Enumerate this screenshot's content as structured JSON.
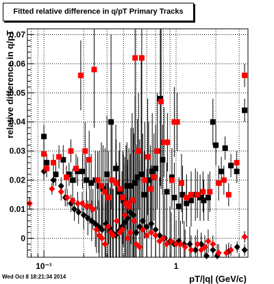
{
  "title": "Fitted relative difference in q/pT  Primary Tracks",
  "footer": "Wed Oct  8 18:21:34 2014",
  "colors": {
    "frame": "#000000",
    "grid": "#000000",
    "series_black": "#000000",
    "series_red": "#ff0000"
  },
  "chart_data": {
    "type": "scatter",
    "xlabel": "pT/|q| (GeV/c)",
    "ylabel": "relative difference in q/pT",
    "x_scale": "log",
    "xlim": [
      0.075,
      3.5
    ],
    "ylim": [
      -0.0065,
      0.072
    ],
    "grid": true,
    "x_ticks": [
      {
        "value": 0.1,
        "label": "10⁻¹"
      },
      {
        "value": 1,
        "label": "1"
      }
    ],
    "y_ticks": [
      {
        "value": 0,
        "label": "0"
      },
      {
        "value": 0.01,
        "label": "0.01"
      },
      {
        "value": 0.02,
        "label": "0.02"
      },
      {
        "value": 0.03,
        "label": "0.03"
      },
      {
        "value": 0.04,
        "label": "0.04"
      },
      {
        "value": 0.05,
        "label": "0.05"
      },
      {
        "value": 0.06,
        "label": "0.06"
      },
      {
        "value": 0.07,
        "label": "0.07"
      }
    ],
    "series": [
      {
        "color": "#000000",
        "marker": "square",
        "points": [
          [
            0.1,
            0.035,
            0.004
          ],
          [
            0.105,
            0.026,
            0.003
          ],
          [
            0.123,
            0.022,
            0.004
          ],
          [
            0.14,
            0.027,
            0.005
          ],
          [
            0.155,
            0.022,
            0.004
          ],
          [
            0.165,
            0.02,
            0.004
          ],
          [
            0.18,
            0.023,
            0.005
          ],
          [
            0.196,
            0.023,
            0.006
          ],
          [
            0.21,
            0.02,
            0.008
          ],
          [
            0.228,
            0.019,
            0.01
          ],
          [
            0.245,
            0.02,
            0.01
          ],
          [
            0.262,
            0.018,
            0.012
          ],
          [
            0.28,
            0.017,
            0.015
          ],
          [
            0.3,
            0.022,
            0.02
          ],
          [
            0.322,
            0.04,
            0.03
          ],
          [
            0.35,
            0.024,
            0.015
          ],
          [
            0.37,
            0.016,
            0.014
          ],
          [
            0.4,
            0.013,
            0.016
          ],
          [
            0.425,
            0.018,
            0.015
          ],
          [
            0.455,
            0.018,
            0.02
          ],
          [
            0.49,
            0.019,
            0.03
          ],
          [
            0.51,
            0.021,
            0.02
          ],
          [
            0.545,
            0.022,
            0.04
          ],
          [
            0.575,
            0.015,
            0.015
          ],
          [
            0.62,
            0.02,
            0.02
          ],
          [
            0.66,
            0.023,
            0.02
          ],
          [
            0.7,
            0.024,
            0.015
          ],
          [
            0.76,
            0.048,
            0.03
          ],
          [
            0.79,
            0.027,
            0.012
          ],
          [
            0.85,
            0.016,
            0.01
          ],
          [
            0.93,
            0.021,
            0.01
          ],
          [
            0.97,
            0.014,
            0.012
          ],
          [
            1.05,
            0.011,
            0.01
          ],
          [
            1.12,
            0.015,
            0.01
          ],
          [
            1.2,
            0.012,
            0.008
          ],
          [
            1.3,
            0.013,
            0.009
          ],
          [
            1.4,
            0.015,
            0.009
          ],
          [
            1.52,
            0.014,
            0.008
          ],
          [
            1.62,
            0.013,
            0.007
          ],
          [
            1.75,
            0.014,
            0.008
          ],
          [
            1.9,
            0.04,
            0.008
          ],
          [
            2.0,
            0.032,
            0.007
          ],
          [
            2.2,
            0.023,
            0.005
          ],
          [
            2.35,
            0.031,
            0.004
          ],
          [
            2.6,
            0.025,
            0.004
          ],
          [
            2.88,
            0.023,
            0.004
          ],
          [
            3.3,
            0.044,
            0.004
          ]
        ]
      },
      {
        "color": "#000000",
        "marker": "diamond",
        "points": [
          [
            0.1,
            0.023,
            0.003
          ],
          [
            0.118,
            0.02,
            0.002
          ],
          [
            0.135,
            0.018,
            0.003
          ],
          [
            0.145,
            0.014,
            0.003
          ],
          [
            0.16,
            0.012,
            0.003
          ],
          [
            0.17,
            0.01,
            0.004
          ],
          [
            0.183,
            0.009,
            0.004
          ],
          [
            0.2,
            0.008,
            0.005
          ],
          [
            0.215,
            0.007,
            0.006
          ],
          [
            0.23,
            0.006,
            0.007
          ],
          [
            0.245,
            0.005,
            0.008
          ],
          [
            0.26,
            0.004,
            0.009
          ],
          [
            0.275,
            0.003,
            0.012
          ],
          [
            0.295,
            0.005,
            0.014
          ],
          [
            0.315,
            0.0035,
            0.014
          ],
          [
            0.33,
            0.002,
            0.015
          ],
          [
            0.35,
            0.001,
            0.02
          ],
          [
            0.37,
            0.0025,
            0.016
          ],
          [
            0.39,
            0.004,
            0.016
          ],
          [
            0.41,
            0.0055,
            0.02
          ],
          [
            0.43,
            0.007,
            0.02
          ],
          [
            0.45,
            0.009,
            0.02
          ],
          [
            0.475,
            0.008,
            0.03
          ],
          [
            0.5,
            0.002,
            0.03
          ],
          [
            0.53,
            0.004,
            0.03
          ],
          [
            0.56,
            0.006,
            0.03
          ],
          [
            0.6,
            0.004,
            0.02
          ],
          [
            0.65,
            0.005,
            0.02
          ],
          [
            0.7,
            0.003,
            0.02
          ],
          [
            0.75,
            0.001,
            0.02
          ],
          [
            0.82,
            0.0,
            0.015
          ],
          [
            0.9,
            -0.001,
            0.012
          ],
          [
            0.97,
            -0.002,
            0.01
          ],
          [
            1.05,
            -0.001,
            0.01
          ],
          [
            1.15,
            -0.002,
            0.008
          ],
          [
            1.27,
            -0.002,
            0.006
          ],
          [
            1.4,
            -0.004,
            0.005
          ],
          [
            1.55,
            -0.002,
            0.004
          ],
          [
            1.7,
            -0.006,
            0.004
          ],
          [
            1.9,
            -0.004,
            0.003
          ],
          [
            2.05,
            -0.006,
            0.004
          ],
          [
            2.5,
            -0.0045,
            0.003
          ],
          [
            2.9,
            -0.003,
            0.002
          ],
          [
            3.3,
            -0.004,
            0.002
          ]
        ]
      },
      {
        "color": "#ff0000",
        "marker": "square",
        "points": [
          [
            0.1,
            0.029,
            0.004
          ],
          [
            0.105,
            0.024,
            0.003
          ],
          [
            0.118,
            0.026,
            0.003
          ],
          [
            0.13,
            0.028,
            0.004
          ],
          [
            0.148,
            0.021,
            0.004
          ],
          [
            0.16,
            0.03,
            0.004
          ],
          [
            0.175,
            0.024,
            0.005
          ],
          [
            0.19,
            0.056,
            0.012
          ],
          [
            0.205,
            0.03,
            0.01
          ],
          [
            0.22,
            0.027,
            0.01
          ],
          [
            0.24,
            0.058,
            0.02
          ],
          [
            0.255,
            0.02,
            0.01
          ],
          [
            0.272,
            0.018,
            0.015
          ],
          [
            0.29,
            0.016,
            0.015
          ],
          [
            0.308,
            0.014,
            0.016
          ],
          [
            0.328,
            0.02,
            0.02
          ],
          [
            0.352,
            0.019,
            0.015
          ],
          [
            0.375,
            0.017,
            0.016
          ],
          [
            0.395,
            0.014,
            0.016
          ],
          [
            0.418,
            0.012,
            0.02
          ],
          [
            0.44,
            0.011,
            0.02
          ],
          [
            0.465,
            0.013,
            0.03
          ],
          [
            0.49,
            0.062,
            0.03
          ],
          [
            0.52,
            0.03,
            0.02
          ],
          [
            0.55,
            0.062,
            0.04
          ],
          [
            0.58,
            0.02,
            0.02
          ],
          [
            0.61,
            0.028,
            0.02
          ],
          [
            0.64,
            0.017,
            0.015
          ],
          [
            0.68,
            0.021,
            0.015
          ],
          [
            0.72,
            0.03,
            0.02
          ],
          [
            0.77,
            0.047,
            0.03
          ],
          [
            0.81,
            0.033,
            0.012
          ],
          [
            0.86,
            0.033,
            0.01
          ],
          [
            0.93,
            0.02,
            0.01
          ],
          [
            0.97,
            0.04,
            0.012
          ],
          [
            1.02,
            0.04,
            0.01
          ],
          [
            1.1,
            0.019,
            0.01
          ],
          [
            1.2,
            0.014,
            0.008
          ],
          [
            1.3,
            0.015,
            0.008
          ],
          [
            1.45,
            0.015,
            0.008
          ],
          [
            1.6,
            0.016,
            0.007
          ],
          [
            1.8,
            0.016,
            0.007
          ],
          [
            2.1,
            0.019,
            0.006
          ],
          [
            2.3,
            0.02,
            0.005
          ],
          [
            2.5,
            0.015,
            0.004
          ],
          [
            2.88,
            0.026,
            0.004
          ],
          [
            3.3,
            0.056,
            0.004
          ]
        ]
      },
      {
        "color": "#ff0000",
        "marker": "diamond",
        "points": [
          [
            0.078,
            0.012,
            0.002
          ],
          [
            0.115,
            0.017,
            0.002
          ],
          [
            0.135,
            0.016,
            0.003
          ],
          [
            0.15,
            0.014,
            0.003
          ],
          [
            0.165,
            0.013,
            0.003
          ],
          [
            0.18,
            0.012,
            0.004
          ],
          [
            0.195,
            0.012,
            0.004
          ],
          [
            0.21,
            0.011,
            0.005
          ],
          [
            0.222,
            0.011,
            0.006
          ],
          [
            0.235,
            0.01,
            0.007
          ],
          [
            0.25,
            0.003,
            0.008
          ],
          [
            0.262,
            0.001,
            0.009
          ],
          [
            0.275,
            0.0,
            0.012
          ],
          [
            0.29,
            -0.002,
            0.014
          ],
          [
            0.305,
            0.004,
            0.015
          ],
          [
            0.32,
            0.002,
            0.015
          ],
          [
            0.335,
            0.001,
            0.016
          ],
          [
            0.355,
            0.006,
            0.02
          ],
          [
            0.375,
            0.002,
            0.02
          ],
          [
            0.39,
            0.003,
            0.02
          ],
          [
            0.41,
            0.008,
            0.02
          ],
          [
            0.43,
            0.0,
            0.025
          ],
          [
            0.45,
            0.002,
            0.025
          ],
          [
            0.48,
            0.006,
            0.03
          ],
          [
            0.5,
            -0.002,
            0.03
          ],
          [
            0.53,
            -0.003,
            0.03
          ],
          [
            0.56,
            0.003,
            0.025
          ],
          [
            0.6,
            0.001,
            0.02
          ],
          [
            0.65,
            0.002,
            0.02
          ],
          [
            0.7,
            0.001,
            0.02
          ],
          [
            0.75,
            -0.001,
            0.018
          ],
          [
            0.8,
            0.0,
            0.015
          ],
          [
            0.85,
            -0.002,
            0.012
          ],
          [
            0.92,
            -0.001,
            0.01
          ],
          [
            1.0,
            -0.002,
            0.008
          ],
          [
            1.08,
            -0.002,
            0.008
          ],
          [
            1.17,
            -0.003,
            0.006
          ],
          [
            1.3,
            -0.004,
            0.005
          ],
          [
            1.45,
            -0.002,
            0.005
          ],
          [
            1.55,
            -0.004,
            0.005
          ],
          [
            1.65,
            -0.003,
            0.004
          ],
          [
            1.75,
            -0.001,
            0.004
          ],
          [
            1.9,
            -0.002,
            0.003
          ],
          [
            2.1,
            -0.005,
            0.003
          ],
          [
            2.4,
            -0.005,
            0.003
          ],
          [
            2.6,
            -0.004,
            0.002
          ],
          [
            3.3,
            0.0005,
            0.002
          ]
        ]
      }
    ]
  }
}
